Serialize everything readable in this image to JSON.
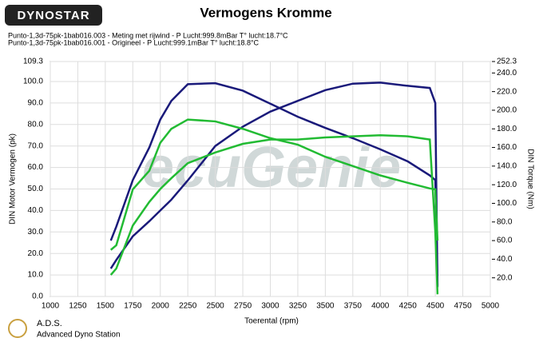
{
  "chart_data": {
    "type": "line",
    "title": "Vermogens Kromme",
    "logo": "DYNOSTAR",
    "runs": [
      {
        "label": "Punto-1,3d-75pk-1bab016.003 - Meting met rijwind  - P Lucht:999.8mBar T° lucht:18.7°C",
        "color": "#1a1a7a"
      },
      {
        "label": "Punto-1,3d-75pk-1bab016.001 - Origineel  - P Lucht:999.1mBar T° lucht:18.8°C",
        "color": "#22bb33"
      }
    ],
    "watermark": "ecuGenie",
    "footer_title": "A.D.S.",
    "footer_subtitle": "Advanced Dyno Station",
    "xlabel": "Toerental (rpm)",
    "ylabel": "DIN Motor Vermogen (pk)",
    "y2label": "DIN Torque (Nm)",
    "x": [
      1550,
      1600,
      1750,
      1900,
      2000,
      2100,
      2250,
      2500,
      2750,
      3000,
      3250,
      3500,
      3750,
      4000,
      4250,
      4450,
      4500,
      4520
    ],
    "series": [
      {
        "color": "#1a1a7a",
        "values": [
          13,
          17,
          28,
          35,
          40,
          45,
          54,
          70,
          79,
          86,
          91,
          96,
          99,
          99.5,
          98,
          97,
          90,
          5
        ]
      },
      {
        "color": "#1a1a7a",
        "axis": "y2",
        "values": [
          60,
          75,
          125,
          160,
          190,
          210,
          228,
          229,
          221,
          207,
          193,
          181,
          170,
          158,
          145,
          130,
          125,
          10
        ]
      },
      {
        "color": "#22bb33",
        "values": [
          10,
          13,
          33,
          44,
          50,
          55,
          62,
          67,
          71,
          73,
          73,
          74,
          74.5,
          75,
          74.5,
          73,
          30,
          1
        ]
      },
      {
        "color": "#22bb33",
        "axis": "y2",
        "values": [
          50,
          55,
          115,
          135,
          165,
          180,
          190,
          188,
          180,
          170,
          163,
          150,
          140,
          130,
          122,
          116,
          115,
          60
        ]
      }
    ],
    "xlim": [
      1000,
      5000
    ],
    "xticks": [
      1000,
      1250,
      1500,
      1750,
      2000,
      2250,
      2500,
      2750,
      3000,
      3250,
      3500,
      3750,
      4000,
      4250,
      4500,
      4750,
      5000
    ],
    "ylim": [
      0,
      109.3
    ],
    "yticks": [
      {
        "value": 0,
        "label": "0.0"
      },
      {
        "value": 10,
        "label": "10.0"
      },
      {
        "value": 20,
        "label": "20.0"
      },
      {
        "value": 30,
        "label": "30.0"
      },
      {
        "value": 40,
        "label": "40.0"
      },
      {
        "value": 50,
        "label": "50.0"
      },
      {
        "value": 60,
        "label": "60.0"
      },
      {
        "value": 70,
        "label": "70.0"
      },
      {
        "value": 80,
        "label": "80.0"
      },
      {
        "value": 90,
        "label": "90.0"
      },
      {
        "value": 100,
        "label": "100.0"
      },
      109.3
    ],
    "y2lim": [
      0,
      252.3
    ],
    "y2ticks": [
      {
        "value": 20,
        "label": "20.0"
      },
      {
        "value": 40,
        "label": "40.0"
      },
      {
        "value": 60,
        "label": "60.0"
      },
      {
        "value": 80,
        "label": "80.0"
      },
      {
        "value": 100,
        "label": "100.0"
      },
      {
        "value": 120,
        "label": "120.0"
      },
      {
        "value": 140,
        "label": "140.0"
      },
      {
        "value": 160,
        "label": "160.0"
      },
      {
        "value": 180,
        "label": "180.0"
      },
      {
        "value": 200,
        "label": "200.0"
      },
      {
        "value": 220,
        "label": "220.0"
      },
      {
        "value": 240,
        "label": "240.0"
      },
      252.3
    ],
    "grid": true
  }
}
